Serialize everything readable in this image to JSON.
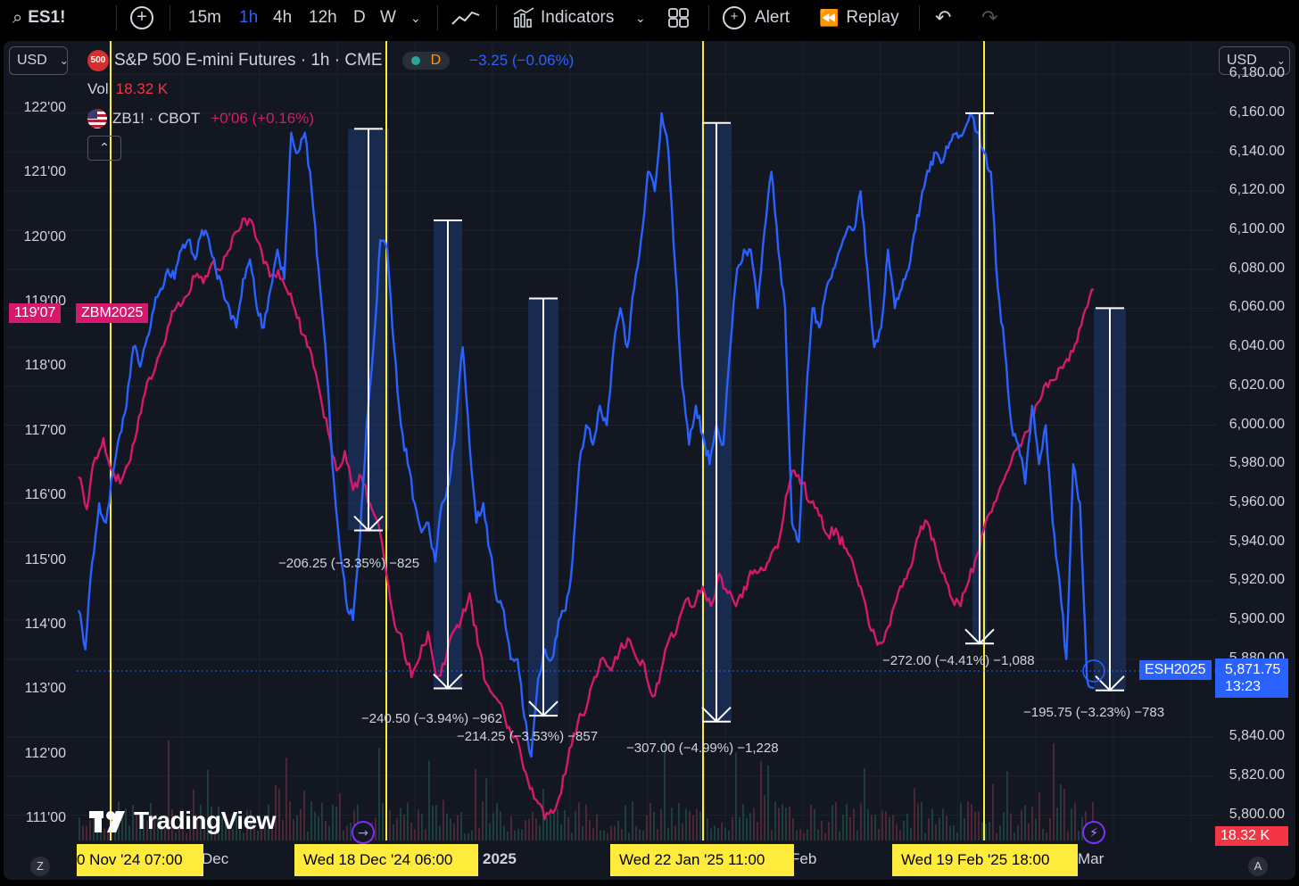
{
  "toolbar": {
    "symbol": "ES1!",
    "intervals": [
      "15m",
      "1h",
      "4h",
      "12h",
      "D",
      "W"
    ],
    "active_interval": "1h",
    "indicators_label": "Indicators",
    "alert_label": "Alert",
    "replay_label": "Replay"
  },
  "currency_left": "USD",
  "currency_right": "USD",
  "legend": {
    "main_badge": "500",
    "main_title": "S&P 500 E-mini Futures · 1h · CME",
    "session_letter": "D",
    "main_change": "−3.25 (−0.06%)",
    "vol_label": "Vol",
    "vol_value": "18.32 K",
    "compare_title": "ZB1! · CBOT",
    "compare_change": "+0'06 (+0.16%)"
  },
  "left_axis": [
    "122'00",
    "121'00",
    "120'00",
    "119'00",
    "118'00",
    "117'00",
    "116'00",
    "115'00",
    "114'00",
    "113'00",
    "112'00",
    "111'00"
  ],
  "right_axis": [
    "6,180.00",
    "6,160.00",
    "6,140.00",
    "6,120.00",
    "6,100.00",
    "6,080.00",
    "6,060.00",
    "6,040.00",
    "6,020.00",
    "6,000.00",
    "5,980.00",
    "5,960.00",
    "5,940.00",
    "5,920.00",
    "5,900.00",
    "5,880.00",
    "5,840.00",
    "5,820.00",
    "5,800.00"
  ],
  "price_tags": {
    "zb_price": "119'07",
    "zb_name": "ZBM2025",
    "es_name": "ESH2025",
    "es_price": "5,871.75",
    "es_countdown": "13:23",
    "volume_tag": "18.32 K"
  },
  "measurements": [
    "−206.25 (−3.35%) −825",
    "−240.50 (−3.94%) −962",
    "−214.25 (−3.53%) −857",
    "−307.00 (−4.99%) −1,228",
    "−272.00 (−4.41%) −1,088",
    "−195.75 (−3.23%) −783"
  ],
  "x_axis": {
    "labels": [
      "Dec",
      "2025",
      "Feb",
      "Mar"
    ],
    "highlights": [
      "0 Nov '24   07:00",
      "Wed 18 Dec '24   06:00",
      "Wed 22 Jan '25   11:00",
      "Wed 19 Feb '25   18:00"
    ]
  },
  "watermark": "TradingView",
  "corner_left": "Z",
  "corner_right": "A",
  "colors": {
    "es_line": "#2962ff",
    "zb_line": "#d6196c",
    "vertical_marker": "#ffeb3b",
    "background": "#131722"
  },
  "chart_data": {
    "type": "line",
    "series": [
      {
        "name": "ESH2025",
        "axis": "right",
        "values": [
          5905,
          5885,
          5930,
          5960,
          5950,
          5975,
          5995,
          6010,
          6040,
          6030,
          6045,
          6060,
          6070,
          6080,
          6075,
          6090,
          6095,
          6085,
          6100,
          6095,
          6080,
          6070,
          6060,
          6050,
          6075,
          6085,
          6060,
          6050,
          6070,
          6090,
          6075,
          6150,
          6140,
          6150,
          6120,
          6080,
          6040,
          5980,
          5940,
          5910,
          5900,
          5940,
          6000,
          6040,
          6095,
          6090,
          6040,
          6000,
          5980,
          5960,
          5945,
          5950,
          5930,
          5960,
          5970,
          6000,
          6040,
          5990,
          5950,
          5960,
          5935,
          5910,
          5905,
          5880,
          5880,
          5850,
          5830,
          5870,
          5885,
          5880,
          5900,
          5905,
          5930,
          5980,
          6000,
          5990,
          6010,
          6000,
          6040,
          6060,
          6040,
          6070,
          6095,
          6130,
          6120,
          6160,
          6140,
          6080,
          6020,
          5990,
          6010,
          5995,
          5980,
          6000,
          5990,
          6040,
          6080,
          6090,
          6090,
          6060,
          6100,
          6130,
          6090,
          6060,
          5950,
          5940,
          6010,
          6060,
          6050,
          6070,
          6080,
          6090,
          6100,
          6100,
          6120,
          6080,
          6040,
          6050,
          6090,
          6060,
          6070,
          6080,
          6100,
          6120,
          6130,
          6140,
          6135,
          6145,
          6150,
          6150,
          6160,
          6150,
          6140,
          6130,
          6070,
          6040,
          6000,
          5990,
          5970,
          6010,
          5980,
          6000,
          5950,
          5920,
          5880,
          5980,
          5960,
          5870,
          5865
        ]
      },
      {
        "name": "ZBM2025",
        "axis": "left",
        "values": [
          116.3,
          115.8,
          116.6,
          116.9,
          116.4,
          116.2,
          116.5,
          117.0,
          117.6,
          117.9,
          118.3,
          118.7,
          119.0,
          119.1,
          119.4,
          119.3,
          119.6,
          119.5,
          119.8,
          120.1,
          120.3,
          120.2,
          119.8,
          119.4,
          119.5,
          119.2,
          118.9,
          118.5,
          118.2,
          117.6,
          117.0,
          116.4,
          116.7,
          116.1,
          116.3,
          115.9,
          115.6,
          114.8,
          114.0,
          113.7,
          113.2,
          113.5,
          113.9,
          113.2,
          113.4,
          113.9,
          114.1,
          114.5,
          113.7,
          113.1,
          112.9,
          112.7,
          112.3,
          112.1,
          111.6,
          111.3,
          111.0,
          111.1,
          111.4,
          112.1,
          112.5,
          112.7,
          113.2,
          113.5,
          113.3,
          113.6,
          113.8,
          113.5,
          113.4,
          112.9,
          113.3,
          113.8,
          114.0,
          114.4,
          114.3,
          114.6,
          114.3,
          114.8,
          114.5,
          114.3,
          114.6,
          114.8,
          114.9,
          115.0,
          115.2,
          116.0,
          116.4,
          116.2,
          115.9,
          115.7,
          115.4,
          115.5,
          115.2,
          115.0,
          114.6,
          114.0,
          113.7,
          113.9,
          114.3,
          114.6,
          114.9,
          115.4,
          115.6,
          115.2,
          114.8,
          114.4,
          114.3,
          114.7,
          115.1,
          115.6,
          115.9,
          116.2,
          116.5,
          116.8,
          117.0,
          117.4,
          117.7,
          117.8,
          118.0,
          118.1,
          118.4,
          118.9,
          119.2
        ]
      }
    ],
    "left_axis_range": [
      110.67,
      123.05
    ],
    "right_axis_range": [
      5787,
      6197
    ],
    "measured_drops": [
      {
        "label_index": 0,
        "from": 6152,
        "to": 5946
      },
      {
        "label_index": 1,
        "from": 6105,
        "to": 5865
      },
      {
        "label_index": 2,
        "from": 6065,
        "to": 5851
      },
      {
        "label_index": 3,
        "from": 6155,
        "to": 5848
      },
      {
        "label_index": 4,
        "from": 6160,
        "to": 5888
      },
      {
        "label_index": 5,
        "from": 6060,
        "to": 5864
      }
    ],
    "grid": true,
    "legend_position": "top-left"
  }
}
